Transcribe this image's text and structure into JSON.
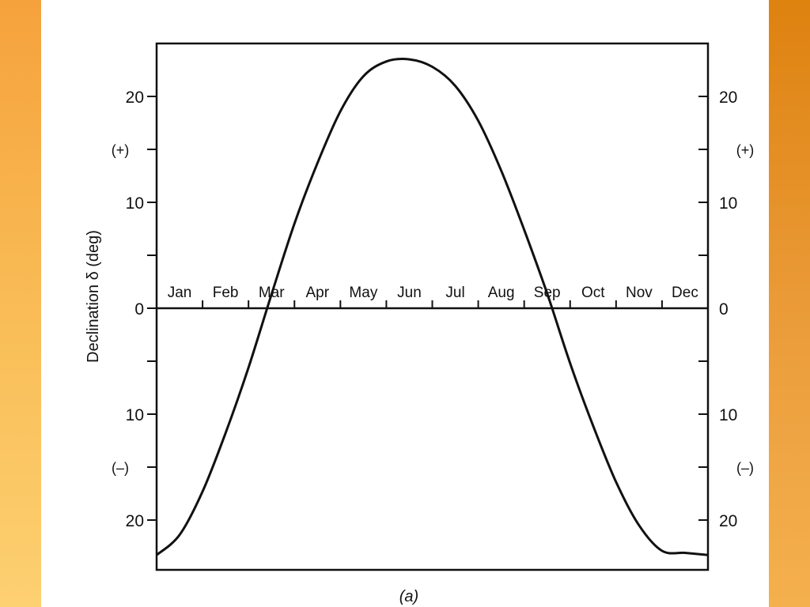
{
  "colors": {
    "left_border": "#f9be58",
    "right_border": "#eb9d3b",
    "background": "#ffffff",
    "ink": "#111111"
  },
  "caption": "(a)",
  "chart_data": {
    "type": "line",
    "title": "",
    "xlabel": "",
    "ylabel": "Declination δ (deg)",
    "months": [
      "Jan",
      "Feb",
      "Mar",
      "Apr",
      "May",
      "Jun",
      "Jul",
      "Aug",
      "Sep",
      "Oct",
      "Nov",
      "Dec"
    ],
    "xlim": [
      0,
      12
    ],
    "ylim": [
      -25,
      25
    ],
    "y_ticks": [
      -20,
      -15,
      -10,
      -5,
      0,
      5,
      10,
      15,
      20
    ],
    "y_tick_labels": {
      "20": "20",
      "10": "10",
      "0": "0",
      "-10": "10",
      "-20": "20"
    },
    "sign_labels": {
      "positive": "(+)",
      "negative": "(–)"
    },
    "grid": false,
    "series": [
      {
        "x_months": [
          0,
          0.5,
          1,
          1.5,
          2,
          2.5,
          3,
          3.5,
          4,
          4.5,
          5,
          5.5,
          6,
          6.5,
          7,
          7.5,
          8,
          8.5,
          9,
          9.5,
          10,
          10.5,
          11,
          11.5,
          12
        ],
        "y": [
          -23.3,
          -21.4,
          -17.3,
          -11.8,
          -5.6,
          1.3,
          8.0,
          13.7,
          18.6,
          21.9,
          23.3,
          23.5,
          22.8,
          21.0,
          17.7,
          13.0,
          7.4,
          1.4,
          -5.2,
          -11.1,
          -16.4,
          -20.5,
          -22.9,
          -23.1,
          -23.3
        ]
      }
    ]
  }
}
